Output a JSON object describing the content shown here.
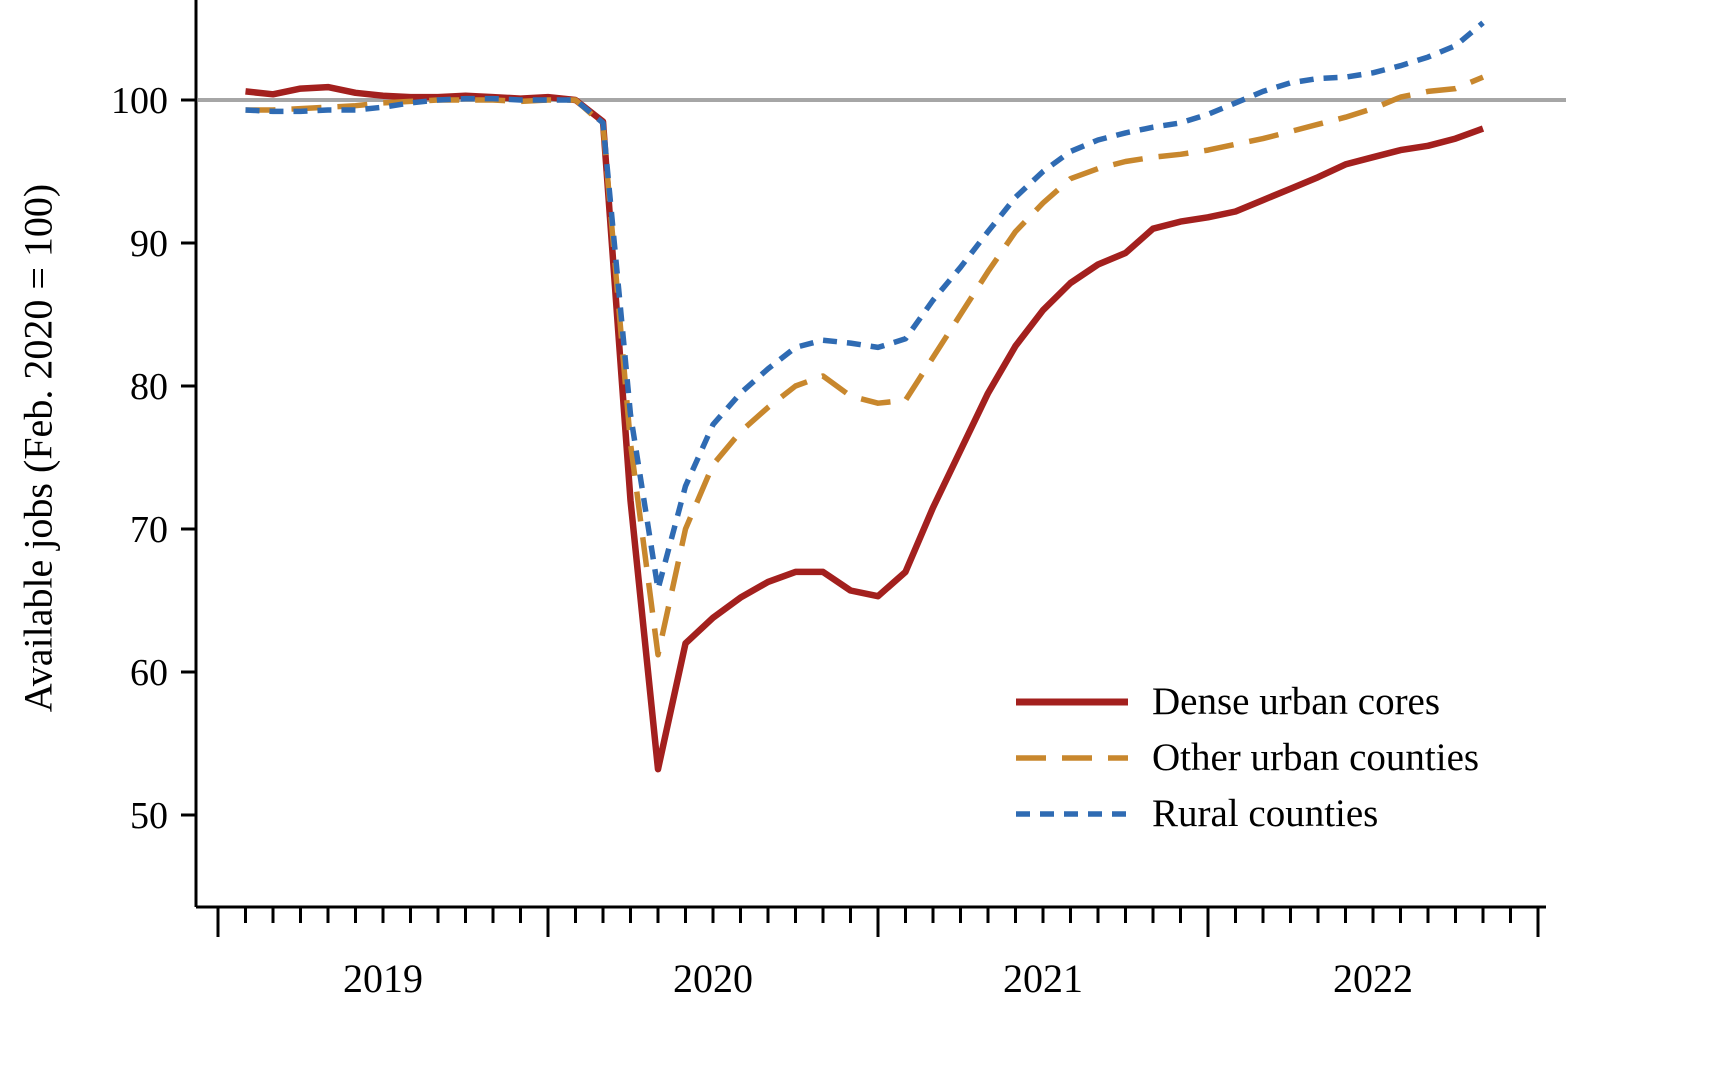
{
  "figure": {
    "background": "#ffffff"
  },
  "chart_data": {
    "type": "line",
    "title": "",
    "xlabel": "",
    "ylabel": "Available jobs (Feb. 2020 = 100)",
    "ylim": [
      43.5,
      107
    ],
    "yticks": [
      "50",
      "60",
      "70",
      "80",
      "90",
      "100"
    ],
    "ytick_values": [
      50,
      60,
      70,
      80,
      90,
      100
    ],
    "xtick_year_labels": [
      "2019",
      "2020",
      "2021",
      "2022"
    ],
    "grid": "off",
    "legend_position": "lower right",
    "reference_line": {
      "value": 100,
      "color": "#a6a6a6"
    },
    "axis_color": "#000000",
    "x": [
      "2019-02",
      "2019-03",
      "2019-04",
      "2019-05",
      "2019-06",
      "2019-07",
      "2019-08",
      "2019-09",
      "2019-10",
      "2019-11",
      "2019-12",
      "2020-01",
      "2020-02",
      "2020-03",
      "2020-04",
      "2020-05",
      "2020-06",
      "2020-07",
      "2020-08",
      "2020-09",
      "2020-10",
      "2020-11",
      "2020-12",
      "2021-01",
      "2021-02",
      "2021-03",
      "2021-04",
      "2021-05",
      "2021-06",
      "2021-07",
      "2021-08",
      "2021-09",
      "2021-10",
      "2021-11",
      "2021-12",
      "2022-01",
      "2022-02",
      "2022-03",
      "2022-04",
      "2022-05",
      "2022-06",
      "2022-07",
      "2022-08",
      "2022-09",
      "2022-10",
      "2022-11"
    ],
    "series": [
      {
        "name": "Dense urban cores",
        "color": "#a3201e",
        "style": "solid",
        "values": [
          100.6,
          100.4,
          100.8,
          100.9,
          100.5,
          100.3,
          100.2,
          100.2,
          100.3,
          100.2,
          100.1,
          100.2,
          100.0,
          98.5,
          72.0,
          53.2,
          62.0,
          63.8,
          65.2,
          66.3,
          67.0,
          67.0,
          65.7,
          65.3,
          67.0,
          71.5,
          75.5,
          79.5,
          82.8,
          85.3,
          87.2,
          88.5,
          89.3,
          91.0,
          91.5,
          91.8,
          92.2,
          93.0,
          93.8,
          94.6,
          95.5,
          96.0,
          96.5,
          96.8,
          97.3,
          98.0
        ]
      },
      {
        "name": "Other urban counties",
        "color": "#c8872d",
        "style": "long-dash",
        "values": [
          99.3,
          99.3,
          99.4,
          99.5,
          99.6,
          99.8,
          99.9,
          100.0,
          100.0,
          100.0,
          99.9,
          100.0,
          100.0,
          98.3,
          76.0,
          61.2,
          70.0,
          74.5,
          76.8,
          78.5,
          80.0,
          80.7,
          79.3,
          78.8,
          79.0,
          82.0,
          85.0,
          88.0,
          90.8,
          92.8,
          94.5,
          95.2,
          95.7,
          96.0,
          96.2,
          96.5,
          96.9,
          97.3,
          97.8,
          98.3,
          98.8,
          99.4,
          100.2,
          100.6,
          100.8,
          101.6
        ]
      },
      {
        "name": "Rural counties",
        "color": "#2f6bb3",
        "style": "short-dash",
        "values": [
          99.3,
          99.2,
          99.2,
          99.3,
          99.3,
          99.5,
          99.8,
          100.0,
          100.1,
          100.1,
          100.0,
          100.0,
          100.0,
          98.4,
          78.0,
          65.8,
          73.0,
          77.3,
          79.5,
          81.2,
          82.7,
          83.2,
          83.0,
          82.7,
          83.3,
          86.0,
          88.3,
          90.8,
          93.2,
          95.0,
          96.4,
          97.2,
          97.7,
          98.1,
          98.4,
          99.0,
          99.8,
          100.6,
          101.2,
          101.5,
          101.6,
          101.9,
          102.4,
          103.0,
          103.8,
          105.4
        ]
      }
    ]
  }
}
